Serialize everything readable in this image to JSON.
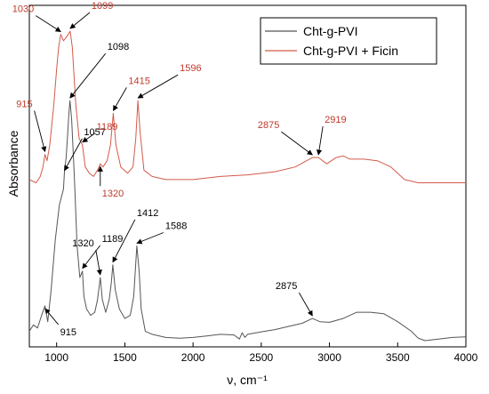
{
  "chart_data": {
    "type": "line",
    "xlabel": "ν, cm⁻¹",
    "ylabel": "Absorbance",
    "xlim": [
      800,
      4000
    ],
    "ylim": [
      0,
      1
    ],
    "x_ticks": [
      1000,
      1500,
      2000,
      2500,
      3000,
      3500,
      4000
    ],
    "x_tick_labels": [
      "1000",
      "1500",
      "2000",
      "2500",
      "3000",
      "3500",
      "4000"
    ],
    "grid": false,
    "legend_position": "top-right",
    "series": [
      {
        "name": "Cht-g-PVI",
        "color": "#555555",
        "points": [
          [
            800,
            0.03
          ],
          [
            830,
            0.05
          ],
          [
            860,
            0.04
          ],
          [
            890,
            0.08
          ],
          [
            915,
            0.11
          ],
          [
            935,
            0.06
          ],
          [
            960,
            0.16
          ],
          [
            990,
            0.32
          ],
          [
            1020,
            0.43
          ],
          [
            1050,
            0.48
          ],
          [
            1057,
            0.53
          ],
          [
            1070,
            0.58
          ],
          [
            1080,
            0.65
          ],
          [
            1090,
            0.72
          ],
          [
            1098,
            0.76
          ],
          [
            1110,
            0.7
          ],
          [
            1130,
            0.52
          ],
          [
            1150,
            0.3
          ],
          [
            1170,
            0.2
          ],
          [
            1189,
            0.22
          ],
          [
            1200,
            0.14
          ],
          [
            1220,
            0.1
          ],
          [
            1250,
            0.08
          ],
          [
            1280,
            0.09
          ],
          [
            1300,
            0.13
          ],
          [
            1320,
            0.2
          ],
          [
            1335,
            0.13
          ],
          [
            1360,
            0.09
          ],
          [
            1385,
            0.13
          ],
          [
            1400,
            0.18
          ],
          [
            1412,
            0.24
          ],
          [
            1430,
            0.16
          ],
          [
            1460,
            0.1
          ],
          [
            1500,
            0.07
          ],
          [
            1540,
            0.08
          ],
          [
            1565,
            0.14
          ],
          [
            1588,
            0.3
          ],
          [
            1605,
            0.22
          ],
          [
            1620,
            0.1
          ],
          [
            1650,
            0.03
          ],
          [
            1700,
            0.02
          ],
          [
            1800,
            0.01
          ],
          [
            1900,
            0.008
          ],
          [
            2000,
            0.01
          ],
          [
            2100,
            0.015
          ],
          [
            2200,
            0.02
          ],
          [
            2300,
            0.018
          ],
          [
            2340,
            0.005
          ],
          [
            2360,
            0.025
          ],
          [
            2380,
            0.01
          ],
          [
            2400,
            0.02
          ],
          [
            2500,
            0.028
          ],
          [
            2600,
            0.035
          ],
          [
            2700,
            0.045
          ],
          [
            2800,
            0.055
          ],
          [
            2875,
            0.07
          ],
          [
            2930,
            0.06
          ],
          [
            3000,
            0.058
          ],
          [
            3100,
            0.07
          ],
          [
            3200,
            0.09
          ],
          [
            3300,
            0.09
          ],
          [
            3400,
            0.085
          ],
          [
            3500,
            0.06
          ],
          [
            3600,
            0.03
          ],
          [
            3650,
            0.008
          ],
          [
            3700,
            0.0
          ],
          [
            3800,
            0.005
          ],
          [
            3900,
            0.01
          ],
          [
            4000,
            0.012
          ]
        ]
      },
      {
        "name": "Cht-g-PVI + Ficin",
        "color": "#d35a4a",
        "points": [
          [
            800,
            0.51
          ],
          [
            850,
            0.5
          ],
          [
            880,
            0.52
          ],
          [
            900,
            0.55
          ],
          [
            915,
            0.59
          ],
          [
            930,
            0.57
          ],
          [
            950,
            0.62
          ],
          [
            980,
            0.75
          ],
          [
            1000,
            0.86
          ],
          [
            1015,
            0.93
          ],
          [
            1030,
            0.97
          ],
          [
            1050,
            0.95
          ],
          [
            1070,
            0.96
          ],
          [
            1085,
            0.97
          ],
          [
            1099,
            0.98
          ],
          [
            1115,
            0.93
          ],
          [
            1140,
            0.75
          ],
          [
            1165,
            0.64
          ],
          [
            1189,
            0.62
          ],
          [
            1210,
            0.55
          ],
          [
            1240,
            0.53
          ],
          [
            1270,
            0.52
          ],
          [
            1300,
            0.54
          ],
          [
            1320,
            0.56
          ],
          [
            1340,
            0.55
          ],
          [
            1370,
            0.57
          ],
          [
            1395,
            0.62
          ],
          [
            1415,
            0.72
          ],
          [
            1435,
            0.62
          ],
          [
            1470,
            0.55
          ],
          [
            1520,
            0.53
          ],
          [
            1560,
            0.55
          ],
          [
            1580,
            0.64
          ],
          [
            1596,
            0.76
          ],
          [
            1612,
            0.66
          ],
          [
            1640,
            0.54
          ],
          [
            1700,
            0.52
          ],
          [
            1800,
            0.51
          ],
          [
            2000,
            0.51
          ],
          [
            2200,
            0.52
          ],
          [
            2400,
            0.525
          ],
          [
            2600,
            0.535
          ],
          [
            2750,
            0.55
          ],
          [
            2875,
            0.58
          ],
          [
            2919,
            0.58
          ],
          [
            2980,
            0.56
          ],
          [
            3050,
            0.58
          ],
          [
            3100,
            0.585
          ],
          [
            3150,
            0.575
          ],
          [
            3250,
            0.575
          ],
          [
            3350,
            0.57
          ],
          [
            3450,
            0.55
          ],
          [
            3550,
            0.51
          ],
          [
            3650,
            0.5
          ],
          [
            3800,
            0.5
          ],
          [
            4000,
            0.5
          ]
        ]
      }
    ],
    "annotations": [
      {
        "series": 0,
        "label": "915",
        "x": 915,
        "dir": "down",
        "dx": 15,
        "dy": 20
      },
      {
        "series": 0,
        "label": "1057",
        "x": 1057,
        "dir": "up",
        "dx": 20,
        "dy": -38
      },
      {
        "series": 0,
        "label": "1098",
        "x": 1098,
        "dir": "up",
        "dx": 40,
        "dy": -52
      },
      {
        "series": 0,
        "label": "1189",
        "x": 1189,
        "dir": "up",
        "dx": 20,
        "dy": -28
      },
      {
        "series": 0,
        "label": "1320",
        "x": 1320,
        "dir": "up",
        "dx": -5,
        "dy": -30
      },
      {
        "series": 0,
        "label": "1412",
        "x": 1412,
        "dir": "up",
        "dx": 25,
        "dy": -50
      },
      {
        "series": 0,
        "label": "1588",
        "x": 1588,
        "dir": "up",
        "dx": 30,
        "dy": -14
      },
      {
        "series": 0,
        "label": "2875",
        "x": 2875,
        "dir": "up",
        "dx": -15,
        "dy": -28
      },
      {
        "series": 1,
        "label": "915",
        "x": 915,
        "dir": "up",
        "dx": -12,
        "dy": -48
      },
      {
        "series": 1,
        "label": "1030",
        "x": 1030,
        "dir": "up",
        "dx": -28,
        "dy": -20
      },
      {
        "series": 1,
        "label": "1099",
        "x": 1099,
        "dir": "up",
        "dx": 22,
        "dy": -20
      },
      {
        "series": 1,
        "label": "1189",
        "x": 1189,
        "dir": "up",
        "dx": 14,
        "dy": -12
      },
      {
        "series": 1,
        "label": "1320",
        "x": 1320,
        "dir": "down",
        "dx": 0,
        "dy": 24
      },
      {
        "series": 1,
        "label": "1415",
        "x": 1415,
        "dir": "up",
        "dx": 15,
        "dy": -28
      },
      {
        "series": 1,
        "label": "1596",
        "x": 1596,
        "dir": "up",
        "dx": 45,
        "dy": -28
      },
      {
        "series": 1,
        "label": "2875",
        "x": 2875,
        "dir": "up",
        "dx": -35,
        "dy": -28
      },
      {
        "series": 1,
        "label": "2919",
        "x": 2919,
        "dir": "up",
        "dx": 5,
        "dy": -34
      }
    ]
  }
}
